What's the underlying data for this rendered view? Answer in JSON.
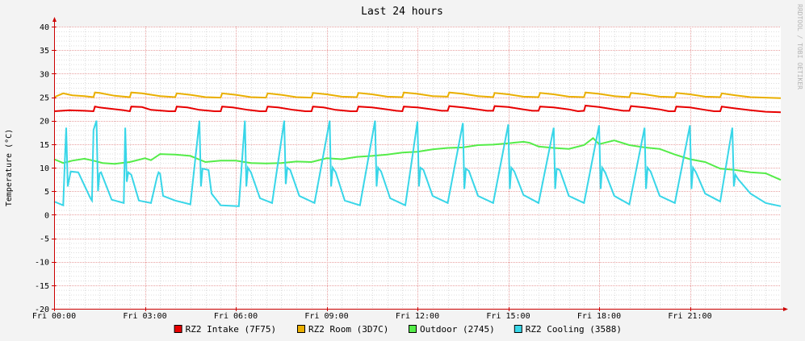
{
  "chart_data": {
    "type": "line",
    "title": "Last 24 hours",
    "ylabel": "Temperature (°C)",
    "xlabel": "",
    "watermark": "RRDTOOL / TOBI OETIKER",
    "ylim": [
      -20,
      40
    ],
    "yticks": [
      40,
      35,
      30,
      25,
      20,
      15,
      10,
      5,
      0,
      -5,
      -10,
      -15,
      -20
    ],
    "xlim": [
      "Fri 00:00",
      "Fri 24:00"
    ],
    "xticks": [
      "Fri 00:00",
      "Fri 03:00",
      "Fri 06:00",
      "Fri 09:00",
      "Fri 12:00",
      "Fri 15:00",
      "Fri 18:00",
      "Fri 21:00"
    ],
    "grid": true,
    "legend_position": "bottom",
    "colors": {
      "background": "#f3f3f3",
      "plot_area": "#ffffff",
      "major_grid": "#e8a0a0",
      "minor_grid": "#dddddd",
      "axis": "#cc0000"
    },
    "series": [
      {
        "name": "RZ2 Intake (7F75)",
        "color": "#e80000",
        "x_hours": [
          0,
          0.5,
          1,
          1.3,
          1.35,
          1.5,
          2.3,
          2.5,
          2.55,
          2.9,
          3.2,
          3.8,
          4,
          4.05,
          4.4,
          4.8,
          5.3,
          5.5,
          5.55,
          5.9,
          6.4,
          6.8,
          7,
          7.05,
          7.4,
          7.9,
          8.3,
          8.5,
          8.55,
          8.9,
          9.3,
          9.8,
          10,
          10.05,
          10.5,
          11,
          11.3,
          11.5,
          11.55,
          12,
          12.5,
          12.8,
          13,
          13.05,
          13.5,
          14,
          14.3,
          14.5,
          14.55,
          15,
          15.5,
          15.8,
          16,
          16.05,
          16.5,
          17,
          17.3,
          17.5,
          17.55,
          18,
          18.5,
          18.8,
          19,
          19.05,
          19.5,
          20,
          20.3,
          20.5,
          20.55,
          21,
          21.5,
          21.8,
          22,
          22.05,
          22.5,
          23,
          23.5,
          24
        ],
        "values": [
          22.0,
          22.2,
          22.1,
          22.0,
          23.0,
          22.8,
          22.2,
          22.0,
          23.0,
          22.9,
          22.3,
          22.0,
          22.0,
          23.0,
          22.8,
          22.3,
          22.0,
          22.0,
          23.0,
          22.8,
          22.3,
          22.0,
          22.0,
          23.0,
          22.8,
          22.3,
          22.0,
          22.0,
          23.0,
          22.8,
          22.3,
          22.0,
          22.0,
          23.0,
          22.8,
          22.4,
          22.1,
          22.0,
          23.0,
          22.8,
          22.4,
          22.1,
          22.1,
          23.1,
          22.8,
          22.4,
          22.1,
          22.1,
          23.1,
          22.9,
          22.4,
          22.1,
          22.1,
          23.0,
          22.8,
          22.4,
          22.0,
          22.1,
          23.2,
          22.9,
          22.4,
          22.1,
          22.1,
          23.1,
          22.8,
          22.4,
          22.0,
          22.0,
          23.0,
          22.8,
          22.3,
          22.0,
          22.0,
          23.0,
          22.6,
          22.2,
          21.9,
          21.8
        ]
      },
      {
        "name": "RZ2 Room (3D7C)",
        "color": "#eaaf00",
        "x_hours": [
          0,
          0.3,
          0.6,
          1,
          1.3,
          1.35,
          1.5,
          2,
          2.5,
          2.55,
          2.9,
          3.5,
          4,
          4.05,
          4.5,
          5,
          5.5,
          5.55,
          6,
          6.5,
          7,
          7.05,
          7.5,
          8,
          8.5,
          8.55,
          9,
          9.5,
          10,
          10.05,
          10.5,
          11,
          11.5,
          11.55,
          12,
          12.5,
          13,
          13.05,
          13.5,
          14,
          14.5,
          14.55,
          15,
          15.5,
          16,
          16.05,
          16.5,
          17,
          17.5,
          17.55,
          18,
          18.5,
          19,
          19.05,
          19.5,
          20,
          20.5,
          20.55,
          21,
          21.5,
          22,
          22.05,
          22.5,
          23,
          23.5,
          24
        ],
        "values": [
          25.0,
          25.8,
          25.4,
          25.2,
          25.0,
          26.0,
          25.9,
          25.3,
          25.0,
          26.0,
          25.8,
          25.2,
          25.0,
          25.8,
          25.5,
          25.0,
          24.9,
          25.8,
          25.5,
          25.0,
          24.9,
          25.8,
          25.5,
          25.0,
          24.9,
          25.9,
          25.6,
          25.1,
          25.0,
          25.9,
          25.6,
          25.1,
          25.0,
          26.0,
          25.7,
          25.2,
          25.1,
          26.0,
          25.7,
          25.2,
          25.0,
          25.9,
          25.6,
          25.1,
          25.0,
          25.9,
          25.6,
          25.1,
          25.0,
          26.0,
          25.7,
          25.2,
          25.0,
          25.9,
          25.6,
          25.1,
          25.0,
          25.9,
          25.6,
          25.1,
          25.0,
          25.8,
          25.4,
          25.0,
          24.9,
          24.8
        ]
      },
      {
        "name": "Outdoor (2745)",
        "color": "#54ec48",
        "x_hours": [
          0,
          0.3,
          0.6,
          1,
          1.3,
          1.6,
          2,
          2.5,
          3,
          3.2,
          3.5,
          4,
          4.5,
          5,
          5.5,
          6,
          6.5,
          7,
          7.5,
          8,
          8.5,
          9,
          9.5,
          10,
          10.5,
          11,
          11.5,
          12,
          12.5,
          13,
          13.5,
          14,
          14.5,
          15,
          15.5,
          15.7,
          16,
          16.5,
          17,
          17.5,
          17.8,
          18,
          18.5,
          19,
          19.5,
          20,
          20.5,
          21,
          21.5,
          22,
          22.5,
          23,
          23.5,
          24
        ],
        "values": [
          11.8,
          11.0,
          11.5,
          11.9,
          11.5,
          11.0,
          10.8,
          11.2,
          12.0,
          11.6,
          12.9,
          12.8,
          12.5,
          11.2,
          11.5,
          11.5,
          11.0,
          10.9,
          11.0,
          11.3,
          11.2,
          12.0,
          11.8,
          12.3,
          12.5,
          12.8,
          13.2,
          13.4,
          13.9,
          14.2,
          14.3,
          14.8,
          14.9,
          15.2,
          15.5,
          15.3,
          14.5,
          14.2,
          14.0,
          14.8,
          16.3,
          15.0,
          15.8,
          14.8,
          14.3,
          14.0,
          12.8,
          11.8,
          11.2,
          9.8,
          9.5,
          9.0,
          8.8,
          7.4
        ]
      },
      {
        "name": "RZ2 Cooling (3588)",
        "color": "#38d6e8",
        "x_hours": [
          0,
          0.3,
          0.35,
          0.4,
          0.45,
          0.55,
          0.8,
          1.2,
          1.25,
          1.3,
          1.4,
          1.45,
          1.5,
          1.55,
          1.9,
          2.3,
          2.35,
          2.4,
          2.45,
          2.55,
          2.8,
          3.2,
          3.4,
          3.45,
          3.5,
          3.6,
          4,
          4.5,
          4.8,
          4.85,
          4.9,
          5.1,
          5.2,
          5.5,
          6.1,
          6.3,
          6.35,
          6.4,
          6.5,
          6.8,
          7.2,
          7.6,
          7.65,
          7.7,
          7.8,
          8.1,
          8.6,
          9.1,
          9.15,
          9.2,
          9.3,
          9.6,
          10.1,
          10.6,
          10.65,
          10.7,
          10.8,
          11.1,
          11.6,
          12,
          12.05,
          12.1,
          12.2,
          12.5,
          13,
          13.5,
          13.55,
          13.6,
          13.7,
          14,
          14.5,
          15,
          15.05,
          15.1,
          15.2,
          15.5,
          16,
          16.5,
          16.55,
          16.6,
          16.7,
          17,
          17.5,
          18,
          18.05,
          18.1,
          18.2,
          18.5,
          19,
          19.5,
          19.55,
          19.6,
          19.7,
          20,
          20.5,
          21,
          21.05,
          21.1,
          21.2,
          21.5,
          22,
          22.4,
          22.45,
          22.5,
          22.6,
          23,
          23.5,
          24
        ],
        "values": [
          2.8,
          2.0,
          10.5,
          18.5,
          6.0,
          9.2,
          9.0,
          3.5,
          3.0,
          18.0,
          20.0,
          5.0,
          8.8,
          9.0,
          3.2,
          2.5,
          18.5,
          7.0,
          9.0,
          8.5,
          3.0,
          2.5,
          8.0,
          9.0,
          8.7,
          4.0,
          3.0,
          2.2,
          20.0,
          6.0,
          9.8,
          9.5,
          4.5,
          2.0,
          1.8,
          20.0,
          6.0,
          10.0,
          9.0,
          3.5,
          2.5,
          20.0,
          6.5,
          10.0,
          9.5,
          4.0,
          2.5,
          20.0,
          6.0,
          10.0,
          9.0,
          3.0,
          2.0,
          20.0,
          6.0,
          10.0,
          9.2,
          3.5,
          2.0,
          19.8,
          6.0,
          10.0,
          9.5,
          4.0,
          2.5,
          19.5,
          5.5,
          9.8,
          9.3,
          4.0,
          2.5,
          19.2,
          5.5,
          10.0,
          9.2,
          4.2,
          2.5,
          18.5,
          5.5,
          9.8,
          9.5,
          4.0,
          2.5,
          19.0,
          5.5,
          10.0,
          9.0,
          4.0,
          2.2,
          18.5,
          5.5,
          10.0,
          9.2,
          4.0,
          2.5,
          19.0,
          5.5,
          10.0,
          9.0,
          4.5,
          2.8,
          18.5,
          6.0,
          8.5,
          7.5,
          4.5,
          2.5,
          1.8
        ]
      }
    ]
  }
}
